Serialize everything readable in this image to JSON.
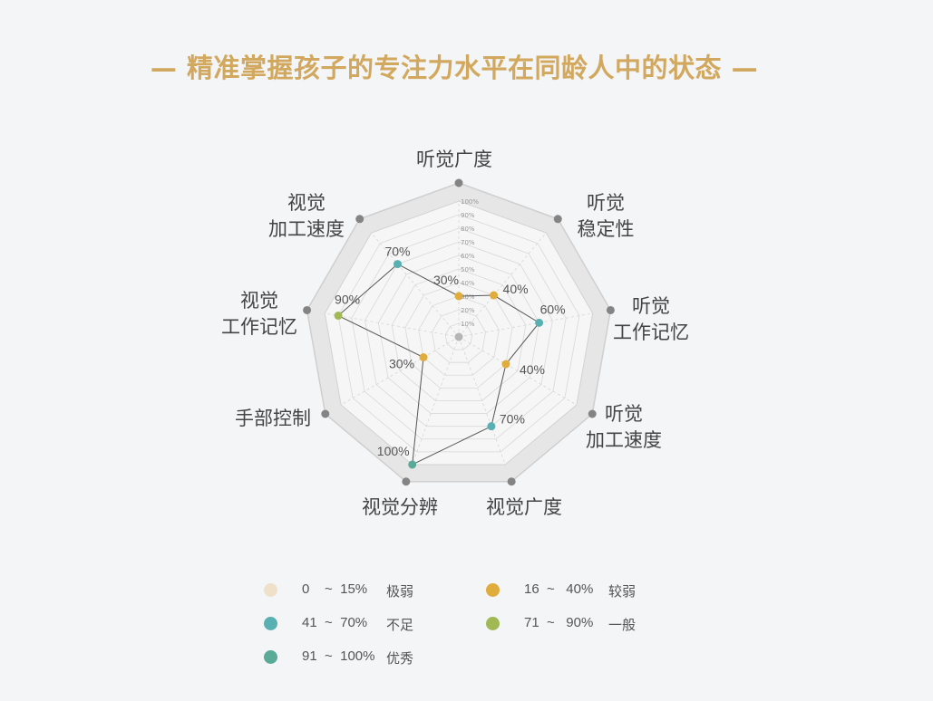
{
  "title": "— 精准掌握孩子的专注力水平在同龄人中的状态 —",
  "chart_data": {
    "type": "radar",
    "axes": [
      {
        "label": [
          "听觉广度"
        ],
        "value": 30,
        "color": "#e0ac3c"
      },
      {
        "label": [
          "听觉",
          "稳定性"
        ],
        "value": 40,
        "color": "#e0ac3c"
      },
      {
        "label": [
          "听觉",
          "工作记忆"
        ],
        "value": 60,
        "color": "#58b0b3"
      },
      {
        "label": [
          "听觉",
          "加工速度"
        ],
        "value": 40,
        "color": "#e0ac3c"
      },
      {
        "label": [
          "视觉广度"
        ],
        "value": 70,
        "color": "#58b0b3"
      },
      {
        "label": [
          "视觉分辨"
        ],
        "value": 100,
        "color": "#5aaa98"
      },
      {
        "label": [
          "手部控制"
        ],
        "value": 30,
        "color": "#e0ac3c"
      },
      {
        "label": [
          "视觉",
          "工作记忆"
        ],
        "value": 90,
        "color": "#a1b954"
      },
      {
        "label": [
          "视觉",
          "加工速度"
        ],
        "value": 70,
        "color": "#58b0b3"
      }
    ],
    "value_labels": [
      "30%",
      "40%",
      "60%",
      "40%",
      "70%",
      "100%",
      "30%",
      "90%",
      "70%"
    ],
    "scale_ticks": [
      "10%",
      "20%",
      "30%",
      "40%",
      "50%",
      "60%",
      "70%",
      "80%",
      "90%",
      "100%"
    ],
    "range": [
      0,
      100
    ],
    "legend": [
      {
        "range": "0    ~  15%",
        "label": "极弱",
        "color": "#efe0c9"
      },
      {
        "range": "16  ~   40%",
        "label": "较弱",
        "color": "#e0ac3c"
      },
      {
        "range": "41  ~  70%",
        "label": "不足",
        "color": "#58b0b3"
      },
      {
        "range": "71  ~   90%",
        "label": "一般",
        "color": "#a1b954"
      },
      {
        "range": "91  ~  100%",
        "label": "优秀",
        "color": "#5aaa98"
      }
    ]
  }
}
